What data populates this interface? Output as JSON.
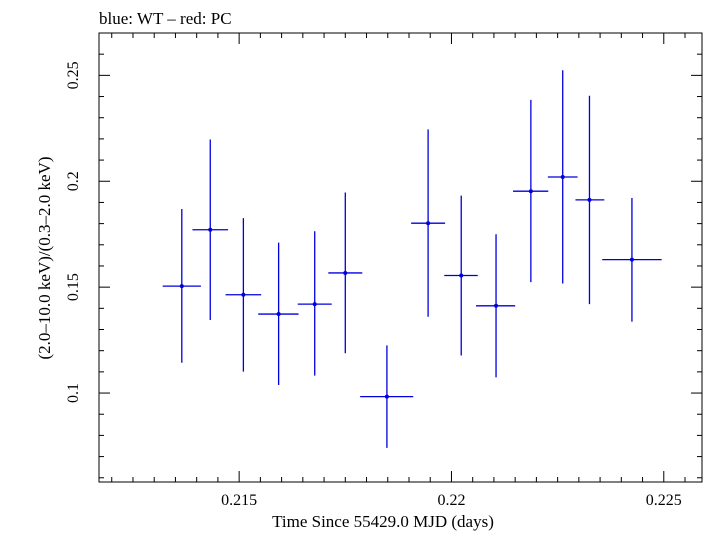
{
  "chart_data": {
    "type": "scatter",
    "title": "blue: WT – red: PC",
    "xlabel": "Time Since 55429.0 MJD (days)",
    "ylabel": "(2.0–10.0 keV)/(0.3–2.0 keV)",
    "xlim": [
      0.2117,
      0.2259
    ],
    "ylim": [
      0.058,
      0.27
    ],
    "x_ticks": [
      0.215,
      0.22,
      0.225
    ],
    "x_tick_labels": [
      "0.215",
      "0.22",
      "0.225"
    ],
    "y_ticks": [
      0.1,
      0.15,
      0.2,
      0.25
    ],
    "y_tick_labels": [
      "0.1",
      "0.15",
      "0.2",
      "0.25"
    ],
    "grid": false,
    "legend": "none",
    "series": [
      {
        "color": "#0000dd",
        "points": [
          {
            "x": 0.21365,
            "xlo": 0.2132,
            "xhi": 0.2141,
            "y": 0.1505,
            "ylo": 0.1143,
            "yhi": 0.1869
          },
          {
            "x": 0.21432,
            "xlo": 0.2139,
            "xhi": 0.21474,
            "y": 0.1771,
            "ylo": 0.1345,
            "yhi": 0.2197
          },
          {
            "x": 0.2151,
            "xlo": 0.21468,
            "xhi": 0.21552,
            "y": 0.1464,
            "ylo": 0.1101,
            "yhi": 0.1826
          },
          {
            "x": 0.21593,
            "xlo": 0.21545,
            "xhi": 0.2164,
            "y": 0.1373,
            "ylo": 0.1038,
            "yhi": 0.171
          },
          {
            "x": 0.21678,
            "xlo": 0.21638,
            "xhi": 0.21718,
            "y": 0.142,
            "ylo": 0.1082,
            "yhi": 0.1764
          },
          {
            "x": 0.2175,
            "xlo": 0.2171,
            "xhi": 0.2179,
            "y": 0.1567,
            "ylo": 0.1188,
            "yhi": 0.1947
          },
          {
            "x": 0.21848,
            "xlo": 0.21785,
            "xhi": 0.2191,
            "y": 0.0983,
            "ylo": 0.0741,
            "yhi": 0.1225
          },
          {
            "x": 0.21945,
            "xlo": 0.21905,
            "xhi": 0.21985,
            "y": 0.1802,
            "ylo": 0.136,
            "yhi": 0.2245
          },
          {
            "x": 0.22023,
            "xlo": 0.21983,
            "xhi": 0.22062,
            "y": 0.1555,
            "ylo": 0.1177,
            "yhi": 0.1932
          },
          {
            "x": 0.22105,
            "xlo": 0.22058,
            "xhi": 0.2215,
            "y": 0.1412,
            "ylo": 0.1074,
            "yhi": 0.175
          },
          {
            "x": 0.22187,
            "xlo": 0.22145,
            "xhi": 0.22228,
            "y": 0.1953,
            "ylo": 0.1524,
            "yhi": 0.2384
          },
          {
            "x": 0.22262,
            "xlo": 0.22227,
            "xhi": 0.22297,
            "y": 0.202,
            "ylo": 0.1517,
            "yhi": 0.2524
          },
          {
            "x": 0.22325,
            "xlo": 0.22292,
            "xhi": 0.2236,
            "y": 0.1912,
            "ylo": 0.142,
            "yhi": 0.2404
          },
          {
            "x": 0.22425,
            "xlo": 0.22355,
            "xhi": 0.22495,
            "y": 0.163,
            "ylo": 0.1337,
            "yhi": 0.1921
          }
        ]
      }
    ]
  }
}
